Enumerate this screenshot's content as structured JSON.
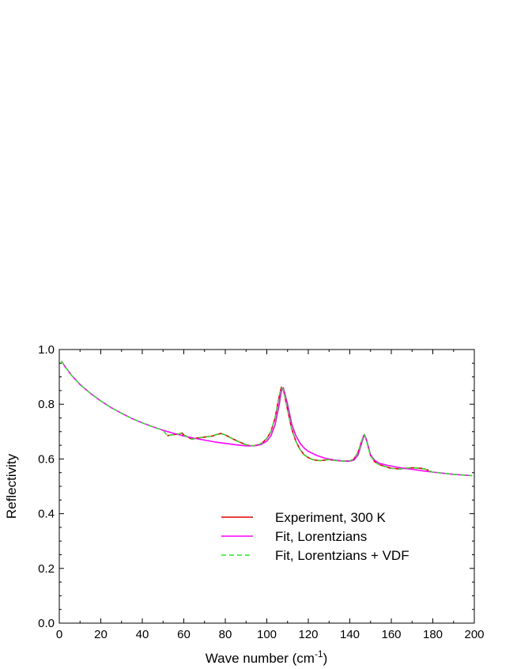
{
  "chart_data": {
    "type": "line",
    "xlabel": "Wave number (cm",
    "xlabel_sup": "-1",
    "xlabel_suffix": ")",
    "ylabel": "Reflectivity",
    "xlim": [
      0,
      200
    ],
    "ylim": [
      0.0,
      1.0
    ],
    "x_ticks": [
      0,
      20,
      40,
      60,
      80,
      100,
      120,
      140,
      160,
      180,
      200
    ],
    "x_tick_labels": [
      "0",
      "20",
      "40",
      "60",
      "80",
      "100",
      "120",
      "140",
      "160",
      "180",
      "200"
    ],
    "y_ticks": [
      0.0,
      0.2,
      0.4,
      0.6,
      0.8,
      1.0
    ],
    "y_tick_labels": [
      "0.0",
      "0.2",
      "0.4",
      "0.6",
      "0.8",
      "1.0"
    ],
    "grid": false,
    "legend_position": "lower-right",
    "series": [
      {
        "name": "Experiment, 300 K",
        "color": "#e00000",
        "style": "solid",
        "x": [
          52,
          54,
          56,
          58,
          59,
          60,
          62,
          64,
          66,
          68,
          70,
          72,
          74,
          76,
          78,
          80,
          82,
          84,
          86,
          88,
          90,
          92,
          94,
          96,
          98,
          100,
          102,
          104,
          106,
          107,
          108,
          110,
          112,
          114,
          116,
          118,
          120,
          122,
          124,
          126,
          128,
          130,
          132,
          134,
          136,
          138,
          140,
          142,
          144,
          146,
          147,
          148,
          150,
          152,
          154,
          156,
          158,
          160,
          162,
          164,
          166,
          168,
          170,
          172,
          174,
          176,
          178
        ],
        "y": [
          0.685,
          0.688,
          0.69,
          0.692,
          0.695,
          0.688,
          0.68,
          0.672,
          0.676,
          0.678,
          0.68,
          0.682,
          0.684,
          0.69,
          0.693,
          0.688,
          0.68,
          0.672,
          0.665,
          0.658,
          0.652,
          0.648,
          0.649,
          0.652,
          0.66,
          0.675,
          0.7,
          0.75,
          0.83,
          0.862,
          0.855,
          0.78,
          0.71,
          0.665,
          0.635,
          0.615,
          0.605,
          0.598,
          0.595,
          0.594,
          0.596,
          0.598,
          0.596,
          0.594,
          0.593,
          0.592,
          0.593,
          0.6,
          0.625,
          0.672,
          0.69,
          0.67,
          0.612,
          0.59,
          0.58,
          0.575,
          0.57,
          0.566,
          0.565,
          0.563,
          0.565,
          0.567,
          0.568,
          0.567,
          0.566,
          0.564,
          0.558
        ]
      },
      {
        "name": "Fit, Lorentzians",
        "color": "#ff00ff",
        "style": "solid",
        "x": [
          1,
          3,
          6,
          10,
          15,
          20,
          25,
          30,
          35,
          40,
          45,
          50,
          55,
          60,
          65,
          70,
          75,
          80,
          85,
          90,
          94,
          97,
          100,
          102,
          104,
          106,
          107,
          108,
          110,
          112,
          114,
          116,
          118,
          120,
          124,
          128,
          132,
          136,
          140,
          142,
          144,
          146,
          147,
          148,
          150,
          152,
          154,
          158,
          162,
          166,
          170,
          175,
          180,
          185,
          190,
          195,
          199
        ],
        "y": [
          0.958,
          0.935,
          0.905,
          0.872,
          0.84,
          0.812,
          0.788,
          0.767,
          0.748,
          0.732,
          0.718,
          0.705,
          0.694,
          0.684,
          0.676,
          0.669,
          0.662,
          0.657,
          0.652,
          0.648,
          0.648,
          0.652,
          0.665,
          0.685,
          0.725,
          0.8,
          0.848,
          0.86,
          0.8,
          0.728,
          0.685,
          0.658,
          0.64,
          0.628,
          0.613,
          0.603,
          0.597,
          0.593,
          0.592,
          0.596,
          0.615,
          0.665,
          0.69,
          0.672,
          0.615,
          0.595,
          0.585,
          0.577,
          0.571,
          0.566,
          0.562,
          0.557,
          0.552,
          0.548,
          0.544,
          0.541,
          0.539
        ]
      },
      {
        "name": "Fit, Lorentzians + VDF",
        "color": "#33dd33",
        "style": "dashed",
        "x": [
          1,
          3,
          6,
          10,
          15,
          20,
          25,
          30,
          35,
          40,
          45,
          50,
          52,
          54,
          56,
          58,
          59,
          60,
          62,
          64,
          66,
          68,
          70,
          72,
          74,
          76,
          78,
          80,
          82,
          84,
          86,
          88,
          90,
          92,
          94,
          96,
          98,
          100,
          102,
          104,
          106,
          107,
          108,
          110,
          112,
          114,
          116,
          118,
          120,
          122,
          124,
          126,
          128,
          130,
          132,
          134,
          136,
          138,
          140,
          142,
          144,
          146,
          147,
          148,
          150,
          152,
          154,
          156,
          158,
          160,
          162,
          164,
          166,
          168,
          170,
          172,
          174,
          176,
          178,
          180,
          185,
          190,
          195,
          199
        ],
        "y": [
          0.958,
          0.935,
          0.905,
          0.872,
          0.84,
          0.812,
          0.788,
          0.767,
          0.748,
          0.732,
          0.718,
          0.705,
          0.686,
          0.688,
          0.69,
          0.692,
          0.695,
          0.688,
          0.68,
          0.672,
          0.676,
          0.678,
          0.68,
          0.682,
          0.684,
          0.69,
          0.693,
          0.688,
          0.68,
          0.672,
          0.665,
          0.658,
          0.652,
          0.648,
          0.649,
          0.652,
          0.66,
          0.675,
          0.7,
          0.75,
          0.83,
          0.86,
          0.855,
          0.78,
          0.71,
          0.665,
          0.635,
          0.615,
          0.605,
          0.598,
          0.595,
          0.594,
          0.596,
          0.598,
          0.596,
          0.594,
          0.593,
          0.592,
          0.593,
          0.6,
          0.625,
          0.672,
          0.69,
          0.67,
          0.612,
          0.59,
          0.58,
          0.575,
          0.57,
          0.566,
          0.565,
          0.563,
          0.565,
          0.567,
          0.568,
          0.567,
          0.566,
          0.564,
          0.558,
          0.552,
          0.548,
          0.544,
          0.541,
          0.539
        ]
      }
    ]
  }
}
